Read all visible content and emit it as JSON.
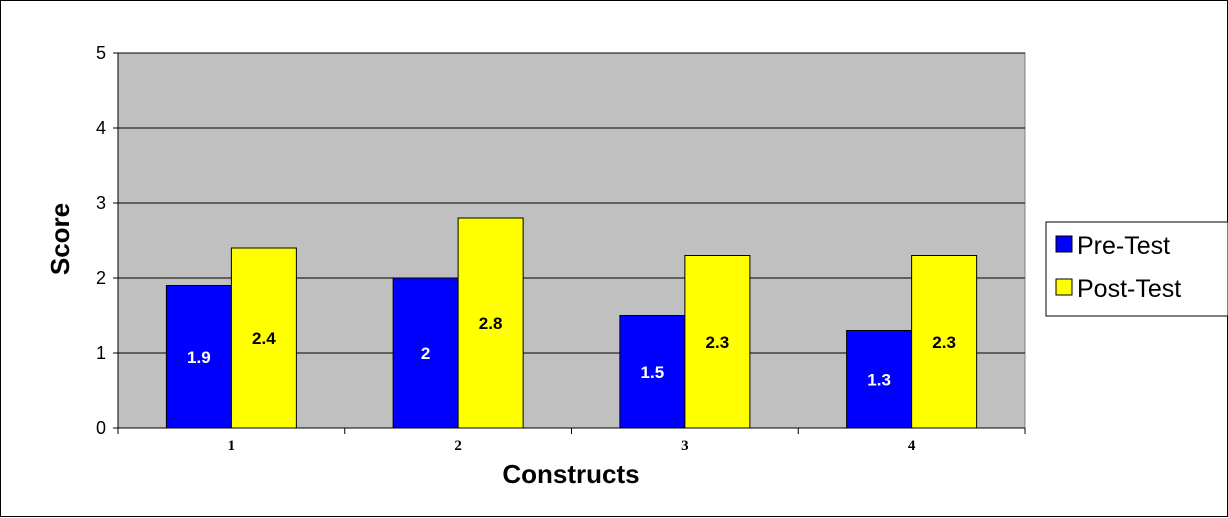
{
  "chart_data": {
    "type": "bar",
    "title": "",
    "xlabel": "Constructs",
    "ylabel": "Score",
    "categories": [
      "1",
      "2",
      "3",
      "4"
    ],
    "ylim": [
      0,
      5
    ],
    "yticks": [
      0,
      1,
      2,
      3,
      4,
      5
    ],
    "grid": true,
    "legend_position": "right",
    "plot_background": "#c0c0c0",
    "series": [
      {
        "name": "Pre-Test",
        "values": [
          1.9,
          2,
          1.5,
          1.3
        ],
        "labels": [
          "1.9",
          "2",
          "1.5",
          "1.3"
        ],
        "color": "#0000ff",
        "label_color": "#ffffff"
      },
      {
        "name": "Post-Test",
        "values": [
          2.4,
          2.8,
          2.3,
          2.3
        ],
        "labels": [
          "2.4",
          "2.8",
          "2.3",
          "2.3"
        ],
        "color": "#ffff00",
        "label_color": "#000000"
      }
    ]
  }
}
